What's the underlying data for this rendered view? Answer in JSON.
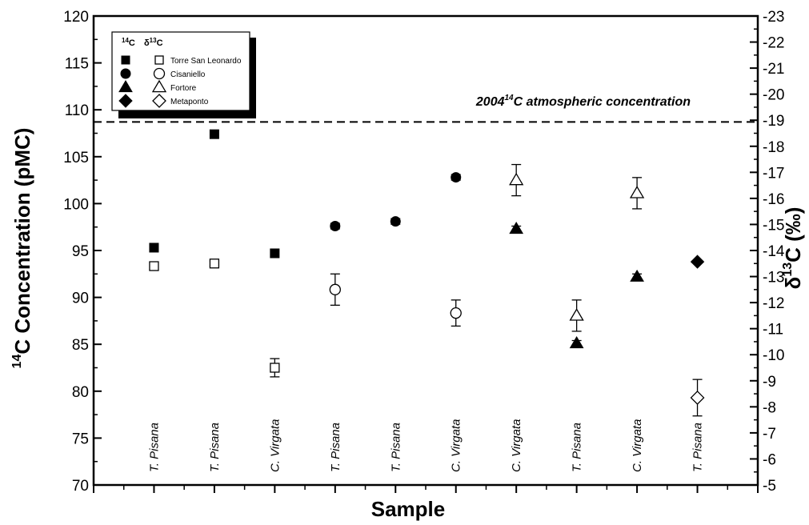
{
  "chart_data": {
    "type": "scatter",
    "xlabel": "Sample",
    "ylabel_main": "C Concentration (pMC)",
    "ylabel_main_sup": "14",
    "y2label_pre": "δ",
    "y2label_sup": "13",
    "y2label_post": "C (‰)",
    "ylim": [
      70,
      120
    ],
    "yticks": [
      70,
      75,
      80,
      85,
      90,
      95,
      100,
      105,
      110,
      115,
      120
    ],
    "y2lim": [
      -5,
      -23
    ],
    "y2ticks": [
      -5,
      -6,
      -7,
      -8,
      -9,
      -10,
      -11,
      -12,
      -13,
      -14,
      -15,
      -16,
      -17,
      -18,
      -19,
      -20,
      -21,
      -22,
      -23
    ],
    "xlim": [
      0,
      11
    ],
    "samples": [
      "T. Pisana",
      "T. Pisana",
      "C. Virgata",
      "T. Pisana",
      "T. Pisana",
      "C. Virgata",
      "C. Virgata",
      "T. Pisana",
      "C. Virgata",
      "T. Pisana"
    ],
    "reference_line": {
      "value": 108.7,
      "label_pre": "2004",
      "label_sup": "14",
      "label_post": "C atmospheric concentration"
    },
    "legend": {
      "header_c14": "14",
      "header_c14_suffix": "C",
      "header_d13_pre": "δ",
      "header_d13_sup": "13",
      "header_d13_suffix": "C",
      "entries": [
        {
          "name": "Torre San Leonardo",
          "marker": "square"
        },
        {
          "name": "Cisaniello",
          "marker": "circle"
        },
        {
          "name": "Fortore",
          "marker": "triangle"
        },
        {
          "name": "Metaponto",
          "marker": "diamond"
        }
      ]
    },
    "series": [
      {
        "name": "Torre San Leonardo",
        "marker": "square",
        "c14": [
          {
            "x": 1,
            "y": 95.3,
            "err": 0
          },
          {
            "x": 2,
            "y": 107.4,
            "err": 0
          },
          {
            "x": 3,
            "y": 94.7,
            "err": 0
          }
        ],
        "d13": [
          {
            "x": 1,
            "y": -13.4,
            "err": 0.12
          },
          {
            "x": 2,
            "y": -13.5,
            "err": 0.1
          },
          {
            "x": 3,
            "y": -9.5,
            "err": 0.35
          }
        ]
      },
      {
        "name": "Cisaniello",
        "marker": "circle",
        "c14": [
          {
            "x": 4,
            "y": 97.6,
            "err": 0.3
          },
          {
            "x": 5,
            "y": 98.1,
            "err": 0.3
          },
          {
            "x": 6,
            "y": 102.8,
            "err": 0.3
          }
        ],
        "d13": [
          {
            "x": 4,
            "y": -12.5,
            "err": 0.6
          },
          {
            "x": 6,
            "y": -11.6,
            "err": 0.5
          }
        ]
      },
      {
        "name": "Fortore",
        "marker": "triangle",
        "c14": [
          {
            "x": 7,
            "y": 97.3,
            "err": 0.3
          },
          {
            "x": 8,
            "y": 85.1,
            "err": 0.3
          },
          {
            "x": 9,
            "y": 92.2,
            "err": 0.3
          }
        ],
        "d13": [
          {
            "x": 7,
            "y": -16.7,
            "err": 0.6
          },
          {
            "x": 8,
            "y": -11.5,
            "err": 0.6
          },
          {
            "x": 9,
            "y": -16.2,
            "err": 0.6
          }
        ]
      },
      {
        "name": "Metaponto",
        "marker": "diamond",
        "c14": [
          {
            "x": 10,
            "y": 93.8,
            "err": 0
          }
        ],
        "d13": [
          {
            "x": 10,
            "y": -8.35,
            "err": 0.7
          }
        ]
      }
    ]
  }
}
